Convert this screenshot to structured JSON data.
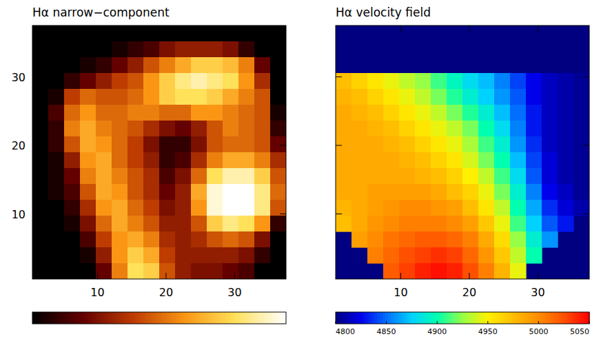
{
  "chart_data": [
    {
      "type": "heatmap",
      "title": "Hα narrow−component",
      "xlim": [
        0.5,
        37.5
      ],
      "ylim": [
        0.5,
        37.5
      ],
      "xticks": [
        10,
        20,
        30
      ],
      "yticks": [
        10,
        20,
        30
      ],
      "colorbar": {
        "range": [
          0,
          1
        ]
      },
      "cells": [
        [
          0,
          0,
          0,
          0,
          0,
          0,
          0,
          0,
          0,
          0,
          0,
          0,
          0,
          0,
          0,
          0
        ],
        [
          0,
          0,
          0,
          0,
          0,
          0.05,
          0.1,
          0.15,
          0.25,
          0.3,
          0.3,
          0.3,
          0.25,
          0.1,
          0,
          0
        ],
        [
          0,
          0,
          0,
          0.05,
          0.1,
          0.2,
          0.3,
          0.45,
          0.55,
          0.65,
          0.75,
          0.75,
          0.7,
          0.55,
          0.2,
          0
        ],
        [
          0,
          0,
          0.1,
          0.2,
          0.3,
          0.4,
          0.45,
          0.6,
          0.75,
          0.85,
          0.9,
          0.85,
          0.8,
          0.6,
          0.35,
          0
        ],
        [
          0,
          0.05,
          0.4,
          0.5,
          0.45,
          0.45,
          0.5,
          0.6,
          0.75,
          0.8,
          0.8,
          0.75,
          0.65,
          0.55,
          0.45,
          0
        ],
        [
          0,
          0.15,
          0.5,
          0.6,
          0.5,
          0.5,
          0.55,
          0.55,
          0.5,
          0.5,
          0.6,
          0.6,
          0.55,
          0.5,
          0.45,
          0.05
        ],
        [
          0,
          0.1,
          0.55,
          0.65,
          0.55,
          0.5,
          0.45,
          0.35,
          0.25,
          0.2,
          0.3,
          0.45,
          0.55,
          0.5,
          0.45,
          0.1
        ],
        [
          0,
          0.1,
          0.45,
          0.65,
          0.6,
          0.5,
          0.4,
          0.25,
          0.1,
          0.1,
          0.25,
          0.45,
          0.5,
          0.5,
          0.45,
          0.2
        ],
        [
          0,
          0.05,
          0.3,
          0.6,
          0.65,
          0.5,
          0.4,
          0.3,
          0.1,
          0.15,
          0.35,
          0.55,
          0.65,
          0.65,
          0.55,
          0.35
        ],
        [
          0,
          0.05,
          0.2,
          0.55,
          0.65,
          0.55,
          0.45,
          0.35,
          0.15,
          0.25,
          0.5,
          0.8,
          0.9,
          0.9,
          0.75,
          0.45
        ],
        [
          0,
          0.05,
          0.15,
          0.45,
          0.65,
          0.6,
          0.45,
          0.35,
          0.2,
          0.3,
          0.65,
          0.95,
          1.0,
          1.0,
          0.85,
          0.5
        ],
        [
          0,
          0,
          0.1,
          0.35,
          0.6,
          0.65,
          0.5,
          0.4,
          0.25,
          0.3,
          0.6,
          0.95,
          1.0,
          1.0,
          0.85,
          0.45
        ],
        [
          0,
          0,
          0.05,
          0.25,
          0.5,
          0.65,
          0.55,
          0.45,
          0.3,
          0.3,
          0.45,
          0.75,
          0.85,
          0.8,
          0.6,
          0.1
        ],
        [
          0,
          0,
          0,
          0.15,
          0.4,
          0.6,
          0.65,
          0.55,
          0.35,
          0.3,
          0.35,
          0.45,
          0.5,
          0.45,
          0.25,
          0
        ],
        [
          0,
          0,
          0,
          0.05,
          0.3,
          0.6,
          0.75,
          0.65,
          0.4,
          0.3,
          0.3,
          0.3,
          0.3,
          0.25,
          0.1,
          0
        ],
        [
          0,
          0,
          0,
          0,
          0.2,
          0.55,
          0.8,
          0.75,
          0.45,
          0.3,
          0.25,
          0.25,
          0.2,
          0.15,
          0,
          0
        ]
      ]
    },
    {
      "type": "heatmap",
      "title": "Hα velocity field",
      "xlim": [
        0.5,
        37.5
      ],
      "ylim": [
        0.5,
        37.5
      ],
      "xticks": [
        10,
        20,
        30
      ],
      "yticks": [
        10,
        20,
        30
      ],
      "tick_labels": "x",
      "colorbar": {
        "range": [
          4800,
          5050
        ],
        "ticks": [
          4800,
          4850,
          4900,
          4950,
          5000,
          5050
        ]
      },
      "cells": [
        [
          null,
          null,
          null,
          null,
          null,
          null,
          null,
          null,
          null,
          null,
          null,
          null,
          null,
          null,
          null,
          null
        ],
        [
          null,
          null,
          null,
          null,
          null,
          null,
          null,
          null,
          null,
          null,
          null,
          null,
          null,
          null,
          null,
          null
        ],
        [
          null,
          null,
          null,
          null,
          null,
          null,
          null,
          null,
          null,
          null,
          null,
          null,
          null,
          null,
          null,
          null
        ],
        [
          4975,
          4965,
          4955,
          4945,
          4935,
          4925,
          4910,
          4895,
          4880,
          4870,
          4855,
          4840,
          4825,
          4815,
          4810,
          4805
        ],
        [
          4980,
          4975,
          4965,
          4955,
          4945,
          4935,
          4920,
          4905,
          4890,
          4875,
          4860,
          4845,
          4825,
          4815,
          4810,
          4805
        ],
        [
          4985,
          4980,
          4975,
          4965,
          4955,
          4945,
          4935,
          4920,
          4905,
          4890,
          4870,
          4850,
          4830,
          4815,
          4810,
          4805
        ],
        [
          4985,
          4985,
          4980,
          4975,
          4965,
          4955,
          4945,
          4935,
          4920,
          4900,
          4880,
          4855,
          4830,
          4815,
          4810,
          4805
        ],
        [
          4985,
          4985,
          4985,
          4980,
          4975,
          4965,
          4955,
          4945,
          4930,
          4910,
          4890,
          4860,
          4835,
          4815,
          4810,
          4805
        ],
        [
          4985,
          4985,
          4985,
          4985,
          4980,
          4975,
          4965,
          4955,
          4940,
          4920,
          4900,
          4870,
          4840,
          4820,
          4810,
          4805
        ],
        [
          4985,
          4985,
          4985,
          4985,
          4985,
          4980,
          4975,
          4965,
          4950,
          4935,
          4910,
          4880,
          4845,
          4820,
          4810,
          4805
        ],
        [
          4985,
          4985,
          4990,
          4990,
          4990,
          4990,
          4985,
          4975,
          4965,
          4945,
          4920,
          4890,
          4855,
          4825,
          4815,
          4805
        ],
        [
          4980,
          4985,
          4990,
          4995,
          5000,
          5000,
          4995,
          4990,
          4975,
          4955,
          4935,
          4900,
          4865,
          4835,
          4820,
          4810
        ],
        [
          4975,
          4985,
          4995,
          5000,
          5005,
          5005,
          5005,
          5000,
          4990,
          4970,
          4945,
          4910,
          4875,
          4845,
          4830,
          null
        ],
        [
          null,
          4990,
          5000,
          5010,
          5015,
          5020,
          5020,
          5015,
          5005,
          4985,
          4960,
          4925,
          4890,
          4860,
          null,
          null
        ],
        [
          null,
          null,
          5005,
          5015,
          5025,
          5030,
          5035,
          5030,
          5015,
          4995,
          4970,
          4935,
          4900,
          null,
          null,
          null
        ],
        [
          null,
          null,
          null,
          5020,
          5030,
          5040,
          5045,
          5040,
          5025,
          5005,
          4980,
          4945,
          null,
          null,
          null,
          null
        ]
      ]
    }
  ]
}
